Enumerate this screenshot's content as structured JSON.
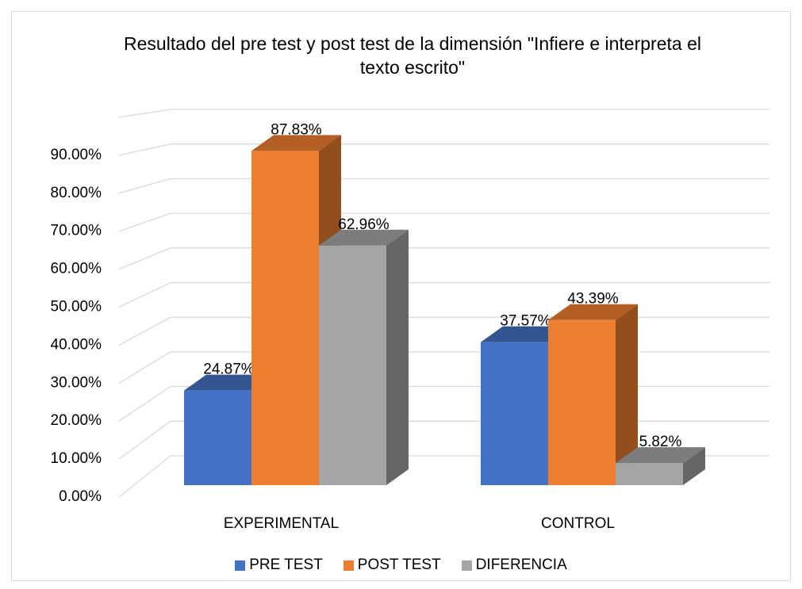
{
  "chart_data": {
    "type": "bar3d",
    "title": "Resultado del pre test y post test de la dimensión \"Infiere e interpreta el texto escrito\"",
    "categories": [
      "EXPERIMENTAL",
      "CONTROL"
    ],
    "series": [
      {
        "name": "PRE TEST",
        "color": "#4472c4",
        "values": [
          24.87,
          37.57
        ],
        "value_labels": [
          "24.87%",
          "37.57%"
        ]
      },
      {
        "name": "POST TEST",
        "color": "#ed7d31",
        "values": [
          87.83,
          43.39
        ],
        "value_labels": [
          "87.83%",
          "43.39%"
        ]
      },
      {
        "name": "DIFERENCIA",
        "color": "#a5a5a5",
        "values": [
          62.96,
          5.82
        ],
        "value_labels": [
          "62.96%",
          "5.82%"
        ]
      }
    ],
    "ylim": [
      0,
      100
    ],
    "yticks": [
      {
        "value": 0,
        "label": "0.00%"
      },
      {
        "value": 10,
        "label": "10.00%"
      },
      {
        "value": 20,
        "label": "20.00%"
      },
      {
        "value": 30,
        "label": "30.00%"
      },
      {
        "value": 40,
        "label": "40.00%"
      },
      {
        "value": 50,
        "label": "50.00%"
      },
      {
        "value": 60,
        "label": "60.00%"
      },
      {
        "value": 70,
        "label": "70.00%"
      },
      {
        "value": 80,
        "label": "80.00%"
      },
      {
        "value": 90,
        "label": "90.00%"
      }
    ],
    "grid": true,
    "legend": "bottom"
  }
}
